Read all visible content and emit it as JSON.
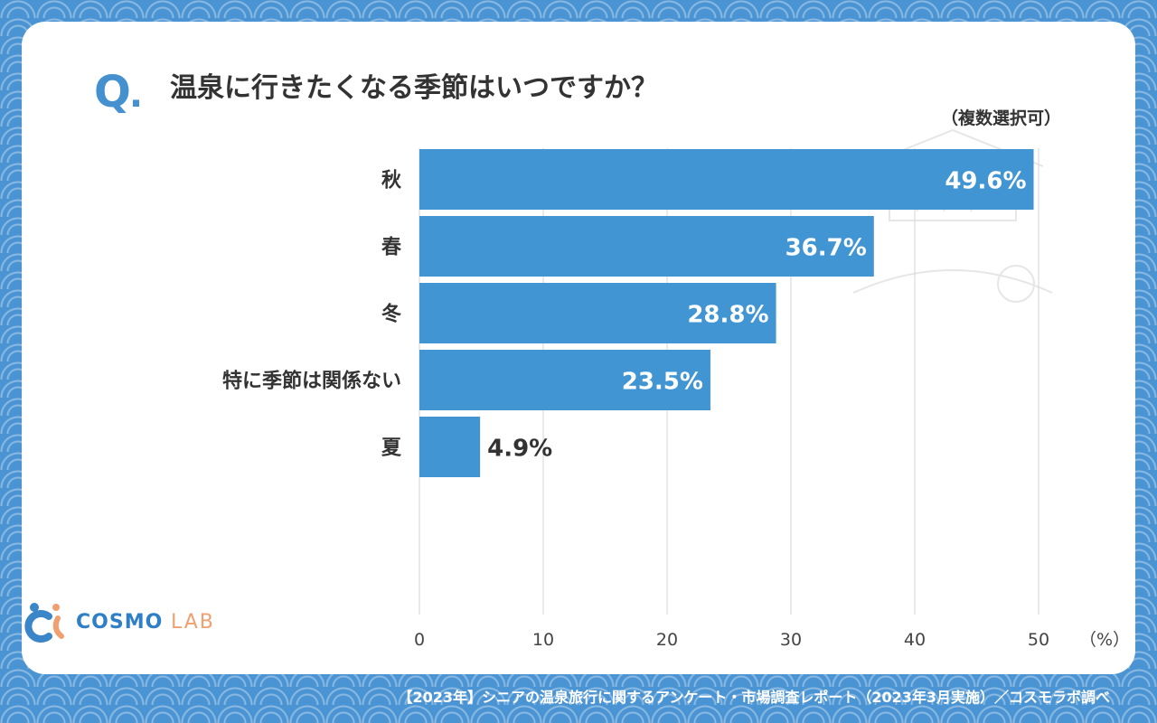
{
  "header": {
    "q_mark": "Q",
    "q_dot": ".",
    "question": "温泉に行きたくなる季節はいつですか？",
    "note": "（複数選択可）"
  },
  "chart_data": {
    "type": "bar",
    "orientation": "horizontal",
    "categories": [
      "秋",
      "春",
      "冬",
      "特に季節は関係ない",
      "夏"
    ],
    "values": [
      49.6,
      36.7,
      28.8,
      23.5,
      4.9
    ],
    "value_labels": [
      "49.6%",
      "36.7%",
      "28.8%",
      "23.5%",
      "4.9%"
    ],
    "x_ticks": [
      "0",
      "10",
      "20",
      "30",
      "40",
      "50"
    ],
    "x_unit": "（%）",
    "xlim": [
      0,
      50
    ],
    "grid": "vertical",
    "bar_color": "#4195d3"
  },
  "logo": {
    "name_main": "COSMO",
    "name_sub": "LAB"
  },
  "footer": {
    "source": "【2023年】シニアの温泉旅行に関するアンケート・市場調査レポート（2023年3月実施）／コスモラボ調べ"
  },
  "colors": {
    "background": "#4b94d3",
    "accent": "#4591d0",
    "text": "#333333"
  }
}
